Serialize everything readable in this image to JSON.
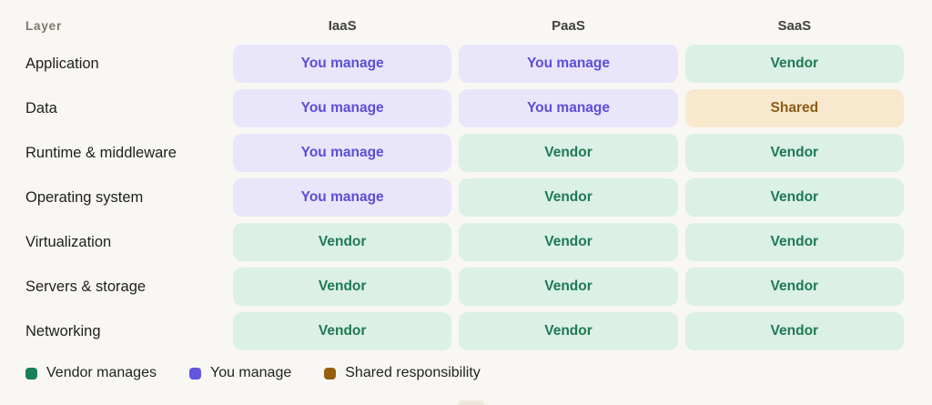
{
  "table": {
    "columns": [
      "Layer",
      "IaaS",
      "PaaS",
      "SaaS"
    ],
    "rows": [
      {
        "label": "Application",
        "cells": [
          "you",
          "you",
          "vendor"
        ]
      },
      {
        "label": "Data",
        "cells": [
          "you",
          "you",
          "shared"
        ]
      },
      {
        "label": "Runtime & middleware",
        "cells": [
          "you",
          "vendor",
          "vendor"
        ]
      },
      {
        "label": "Operating system",
        "cells": [
          "you",
          "vendor",
          "vendor"
        ]
      },
      {
        "label": "Virtualization",
        "cells": [
          "vendor",
          "vendor",
          "vendor"
        ]
      },
      {
        "label": "Servers & storage",
        "cells": [
          "vendor",
          "vendor",
          "vendor"
        ]
      },
      {
        "label": "Networking",
        "cells": [
          "vendor",
          "vendor",
          "vendor"
        ]
      }
    ],
    "cell_labels": {
      "you": "You manage",
      "vendor": "Vendor",
      "shared": "Shared"
    },
    "cell_styles": {
      "you": {
        "bg": "#e9e5fb",
        "text": "#5b4ed9"
      },
      "vendor": {
        "bg": "#dbf0e6",
        "text": "#1e7a52"
      },
      "shared": {
        "bg": "#f8e9ce",
        "text": "#8d5b16"
      }
    }
  },
  "legend": {
    "items": [
      {
        "key": "vendor",
        "label": "Vendor manages",
        "color": "#17805a"
      },
      {
        "key": "you",
        "label": "You manage",
        "color": "#6156dd"
      },
      {
        "key": "shared",
        "label": "Shared responsibility",
        "color": "#96600f"
      }
    ]
  },
  "colors": {
    "background": "#f8f7f3",
    "header_muted": "#7a786f",
    "header_strong": "#42413c",
    "row_label": "#1f1e1b"
  },
  "chart_data": {
    "type": "table",
    "title": "",
    "columns": [
      "Layer",
      "IaaS",
      "PaaS",
      "SaaS"
    ],
    "rows": [
      [
        "Application",
        "You manage",
        "You manage",
        "Vendor"
      ],
      [
        "Data",
        "You manage",
        "You manage",
        "Shared"
      ],
      [
        "Runtime & middleware",
        "You manage",
        "Vendor",
        "Vendor"
      ],
      [
        "Operating system",
        "You manage",
        "Vendor",
        "Vendor"
      ],
      [
        "Virtualization",
        "Vendor",
        "Vendor",
        "Vendor"
      ],
      [
        "Servers & storage",
        "Vendor",
        "Vendor",
        "Vendor"
      ],
      [
        "Networking",
        "Vendor",
        "Vendor",
        "Vendor"
      ]
    ],
    "legend": [
      "Vendor manages",
      "You manage",
      "Shared responsibility"
    ],
    "legend_position": "bottom",
    "cell_color_coding": {
      "You manage": "#e9e5fb",
      "Vendor": "#dbf0e6",
      "Shared": "#f8e9ce"
    }
  }
}
